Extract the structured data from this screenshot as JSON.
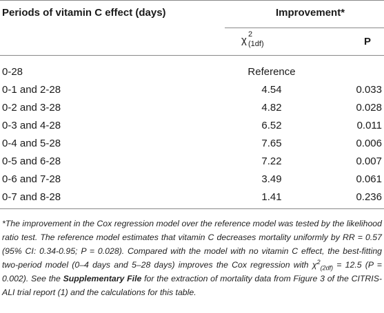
{
  "table": {
    "header": {
      "periods": "Periods of vitamin C effect (days)",
      "improvement": "Improvement*",
      "chi_symbol": "χ",
      "chi_sup": "2",
      "chi_sub": "(1df)",
      "p": "P"
    },
    "rows": [
      {
        "period": "0-28",
        "chi": "Reference",
        "p": ""
      },
      {
        "period": "0-1 and 2-28",
        "chi": "4.54",
        "p": "0.033"
      },
      {
        "period": "0-2 and 3-28",
        "chi": "4.82",
        "p": "0.028"
      },
      {
        "period": "0-3 and 4-28",
        "chi": "6.52",
        "p": "0.011"
      },
      {
        "period": "0-4 and 5-28",
        "chi": "7.65",
        "p": "0.006"
      },
      {
        "period": "0-5 and 6-28",
        "chi": "7.22",
        "p": "0.007"
      },
      {
        "period": "0-6 and 7-28",
        "chi": "3.49",
        "p": "0.061"
      },
      {
        "period": "0-7 and 8-28",
        "chi": "1.41",
        "p": "0.236"
      }
    ]
  },
  "footnote": {
    "part1": "*The improvement in the Cox regression model over the reference model was tested by the likelihood ratio test. The reference model estimates that vitamin C decreases mortality uniformly by RR = 0.57 (95% CI: 0.34-0.95; P = 0.028). Compared with the model with no vitamin C effect, the best-fitting two-period model (0–4 days and 5–28 days) improves the Cox regression with ",
    "chi_symbol": "χ",
    "chi_sup": "2",
    "chi_sub": "(2df)",
    "part2": " = 12.5 (P = 0.002). See the ",
    "bold": "Supplementary File",
    "part3": " for the extraction of mortality data from Figure 3 of the CITRIS-ALI trial report (",
    "ref": "1",
    "part4": ") and the calculations for this table."
  }
}
